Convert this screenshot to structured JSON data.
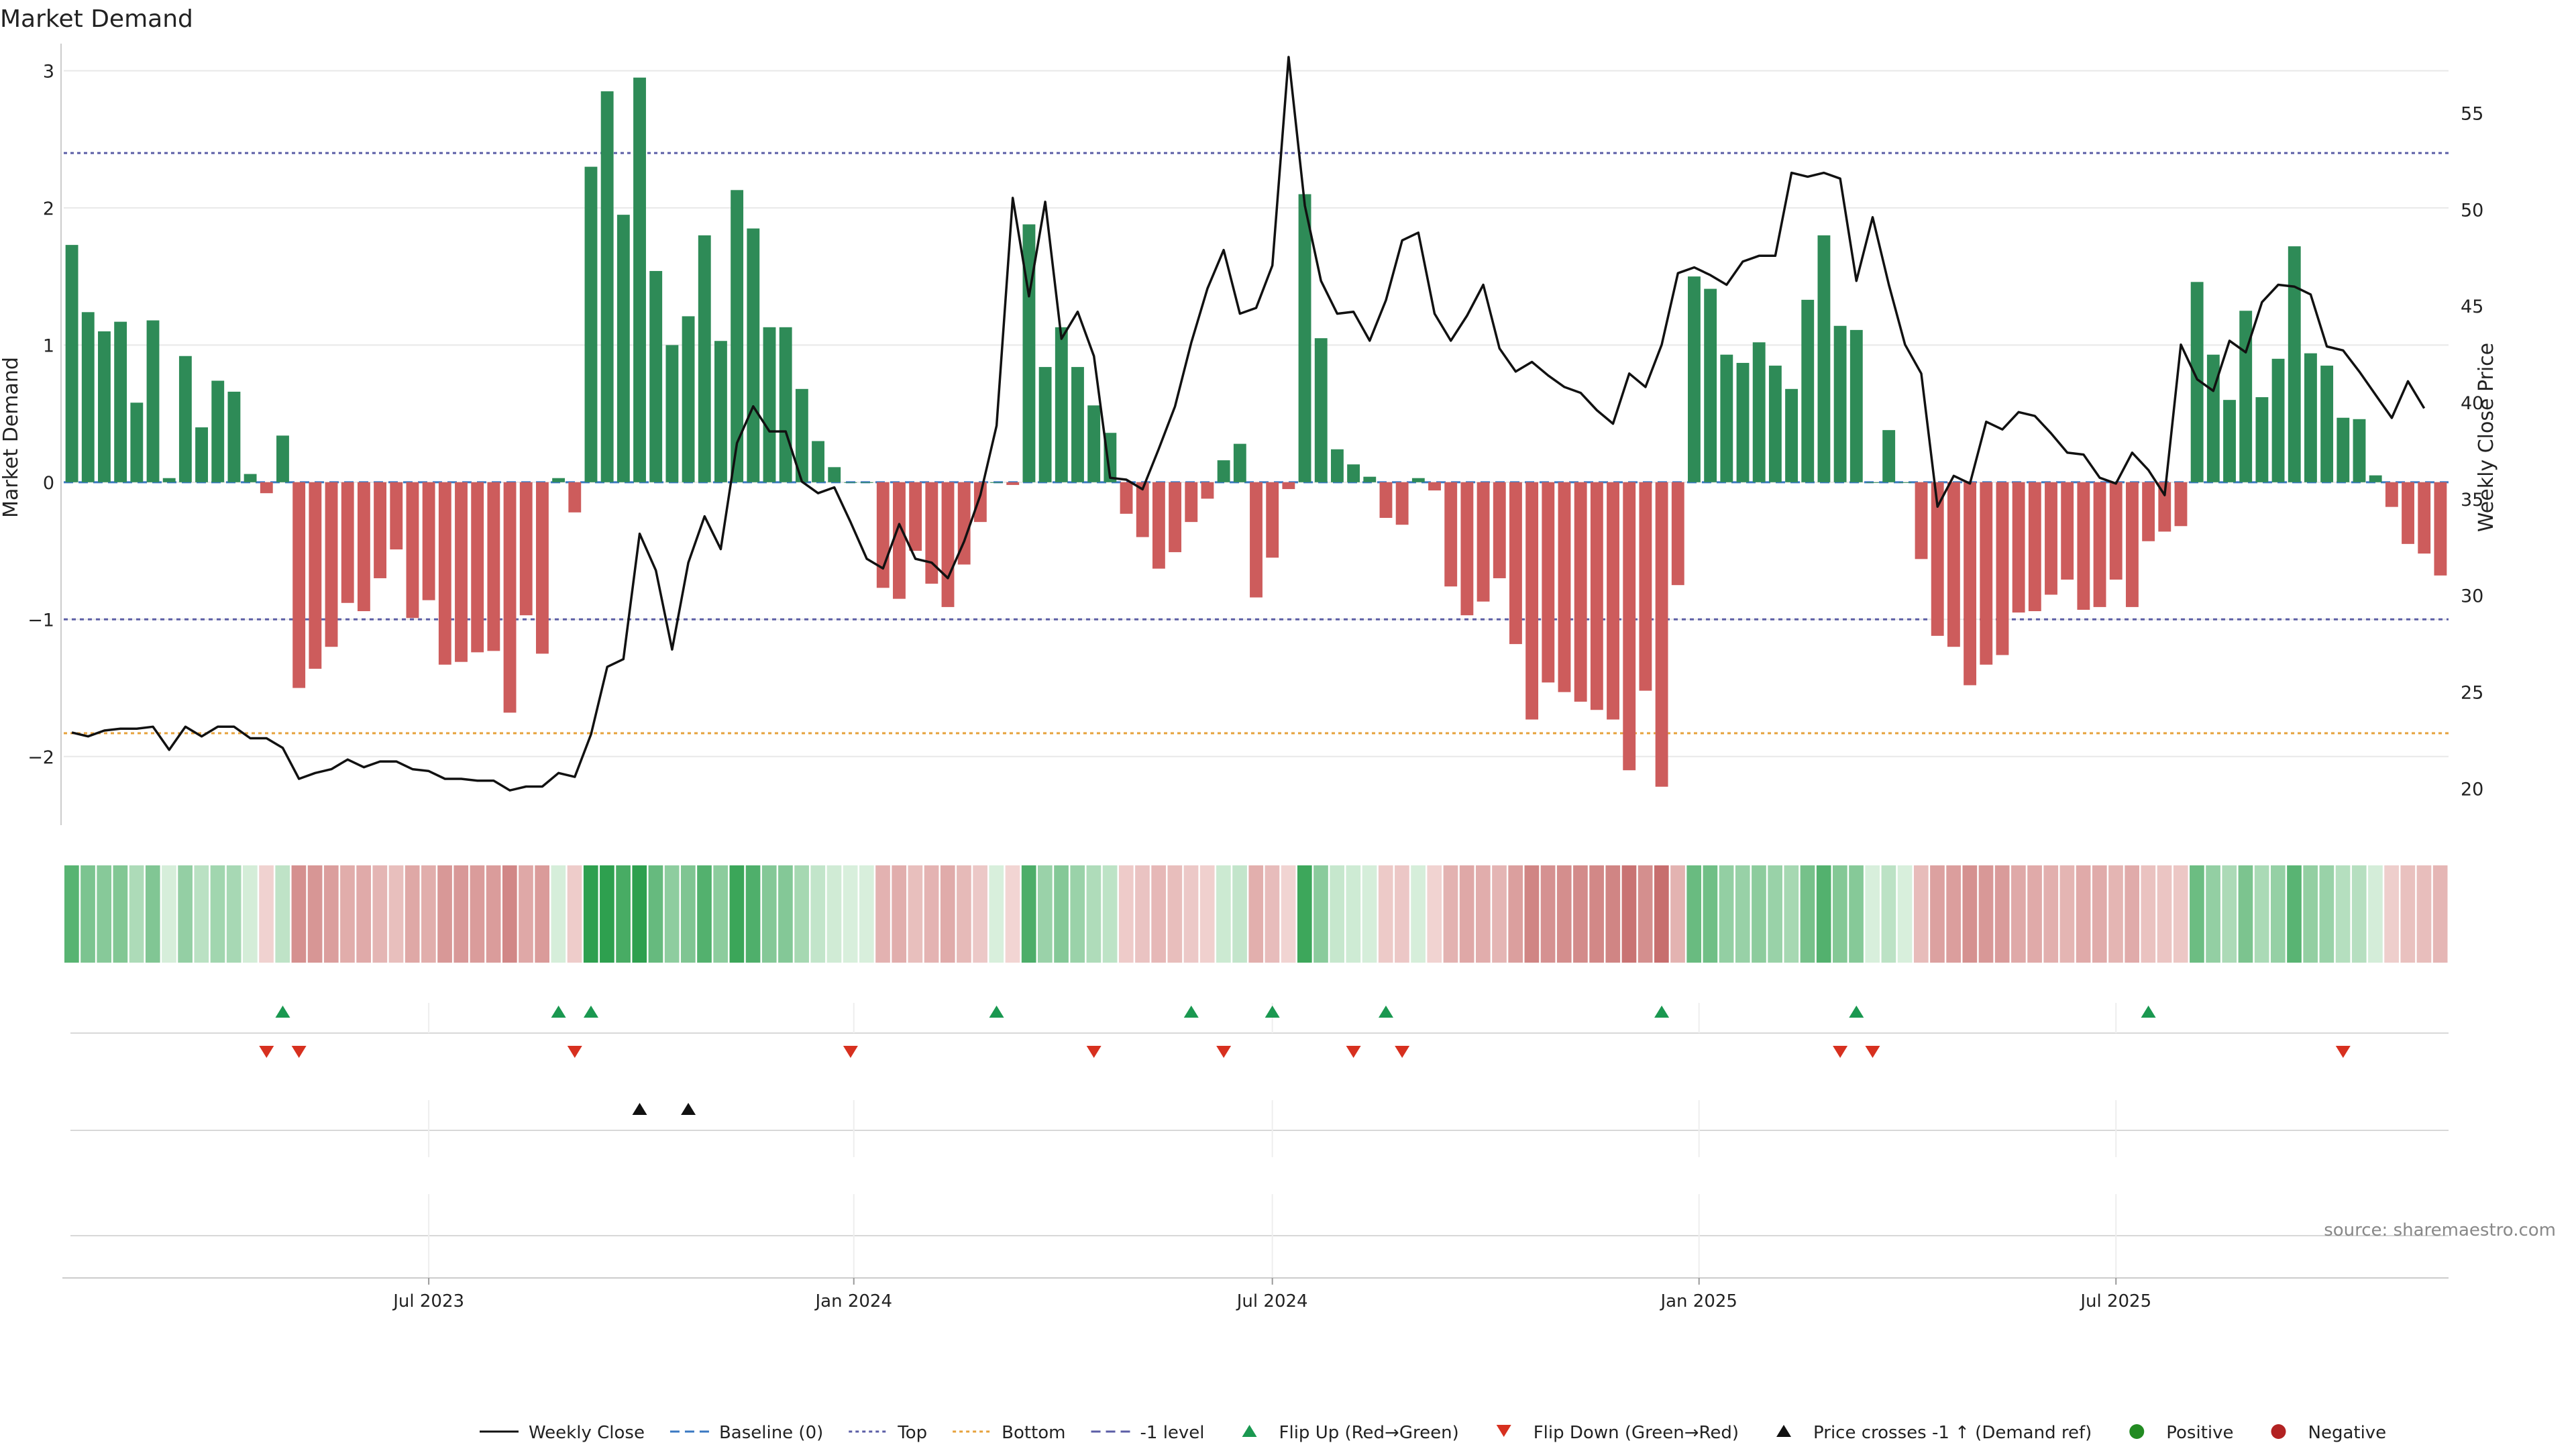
{
  "chart_data": {
    "type": "bar",
    "title": "Market Demand",
    "ylabel": "Market Demand",
    "y2label": "Weekly Close Price",
    "ylim": [
      -2.5,
      3.1
    ],
    "y2lim": [
      18.1,
      57.9
    ],
    "yticks": [
      3,
      2,
      1,
      0,
      -1,
      -2
    ],
    "ytick_labels": [
      "3",
      "2",
      "1",
      "0",
      "−1",
      "−2"
    ],
    "y2ticks": [
      55,
      50,
      45,
      40,
      35,
      30,
      25,
      20
    ],
    "y2tick_labels": [
      "55",
      "50",
      "45",
      "40",
      "35",
      "30",
      "25",
      "20"
    ],
    "reference_lines": {
      "top": 2.4,
      "bottom": -1.83,
      "minus_one": -1.0,
      "baseline": 0
    },
    "x_start_label": "2023-02-10",
    "xtick_labels": [
      "Jul 2023",
      "Jan 2024",
      "Jul 2024",
      "Jan 2025",
      "Jul 2025"
    ],
    "xtick_index": [
      22,
      48.2,
      74,
      100.3,
      126
    ],
    "demand": [
      1.73,
      1.24,
      1.1,
      1.17,
      0.58,
      1.18,
      0.03,
      0.92,
      0.4,
      0.74,
      0.66,
      0.06,
      -0.08,
      0.34,
      -1.5,
      -1.36,
      -1.2,
      -0.88,
      -0.94,
      -0.7,
      -0.49,
      -0.99,
      -0.86,
      -1.33,
      -1.31,
      -1.24,
      -1.23,
      -1.68,
      -0.97,
      -1.25,
      0.03,
      -0.22,
      2.3,
      2.85,
      1.95,
      2.95,
      1.54,
      1.0,
      1.21,
      1.8,
      1.03,
      2.13,
      1.85,
      1.13,
      1.13,
      0.68,
      0.3,
      0.11,
      0.0,
      0.0,
      -0.77,
      -0.85,
      -0.5,
      -0.74,
      -0.91,
      -0.6,
      -0.29,
      0.0,
      -0.02,
      1.88,
      0.84,
      1.13,
      0.84,
      0.56,
      0.36,
      -0.23,
      -0.4,
      -0.63,
      -0.51,
      -0.29,
      -0.12,
      0.16,
      0.28,
      -0.84,
      -0.55,
      -0.05,
      2.1,
      1.05,
      0.24,
      0.13,
      0.04,
      -0.26,
      -0.31,
      0.03,
      -0.06,
      -0.76,
      -0.97,
      -0.87,
      -0.7,
      -1.18,
      -1.73,
      -1.46,
      -1.53,
      -1.6,
      -1.66,
      -1.73,
      -2.1,
      -1.52,
      -2.22,
      -0.75,
      1.5,
      1.41,
      0.93,
      0.87,
      1.02,
      0.85,
      0.68,
      1.33,
      1.8,
      1.14,
      1.11,
      0.0,
      0.38,
      0.0,
      -0.56,
      -1.12,
      -1.2,
      -1.48,
      -1.33,
      -1.26,
      -0.95,
      -0.94,
      -0.82,
      -0.71,
      -0.93,
      -0.91,
      -0.71,
      -0.91,
      -0.43,
      -0.36,
      -0.32,
      1.46,
      0.93,
      0.6,
      1.25,
      0.62,
      0.9,
      1.72,
      0.94,
      0.85,
      0.47,
      0.46,
      0.05,
      -0.18,
      -0.45,
      -0.52,
      -0.68
    ],
    "series": [
      {
        "name": "Weekly Close",
        "values": [
          22.9,
          22.7,
          23.0,
          23.1,
          23.1,
          23.2,
          22.0,
          23.2,
          22.7,
          23.2,
          23.2,
          22.6,
          22.6,
          22.1,
          20.5,
          20.8,
          21.0,
          21.5,
          21.1,
          21.4,
          21.4,
          21.0,
          20.9,
          20.5,
          20.5,
          20.4,
          20.4,
          19.9,
          20.1,
          20.1,
          20.8,
          20.6,
          22.8,
          26.3,
          26.7,
          33.2,
          31.3,
          27.2,
          31.7,
          34.1,
          32.4,
          37.9,
          39.8,
          38.5,
          38.5,
          35.9,
          35.3,
          35.6,
          33.8,
          31.9,
          31.4,
          33.7,
          31.9,
          31.7,
          30.9,
          32.8,
          35.2,
          38.8,
          50.6,
          45.5,
          50.4,
          43.3,
          44.7,
          42.4,
          36.1,
          36.0,
          35.5,
          37.6,
          39.8,
          43.1,
          45.9,
          47.9,
          44.6,
          44.9,
          47.1,
          57.9,
          50.2,
          46.3,
          44.6,
          44.7,
          43.2,
          45.3,
          48.4,
          48.8,
          44.6,
          43.2,
          44.5,
          46.1,
          42.8,
          41.6,
          42.1,
          41.4,
          40.8,
          40.5,
          39.6,
          38.9,
          41.5,
          40.8,
          43.0,
          46.7,
          47.0,
          46.6,
          46.1,
          47.3,
          47.6,
          47.6,
          51.9,
          51.7,
          51.9,
          51.6,
          46.3,
          49.6,
          46.1,
          43.0,
          41.5,
          34.6,
          36.2,
          35.8,
          39.0,
          38.6,
          39.5,
          39.3,
          38.4,
          37.4,
          37.3,
          36.1,
          35.8,
          37.4,
          36.5,
          35.2,
          43.0,
          41.2,
          40.6,
          43.2,
          42.6,
          45.2,
          46.1,
          46.0,
          45.6,
          42.9,
          42.7,
          41.6,
          40.4,
          39.2,
          41.1,
          39.7
        ]
      }
    ],
    "flip_up_index": [
      13,
      30,
      32,
      57,
      69,
      74,
      81,
      98,
      110,
      128
    ],
    "flip_down_index": [
      12,
      14,
      31,
      48,
      63,
      71,
      79,
      82,
      109,
      111,
      140
    ],
    "price_cross_index": [
      35,
      38
    ],
    "colors": {
      "positive": "#2e8b57",
      "negative": "#cd5c5c",
      "price_line": "#111111",
      "top_line": "#5b5ea6",
      "bottom_line": "#e6a23c",
      "flip_up": "#1a9850",
      "flip_down": "#d7301f",
      "price_cross": "#111111",
      "positive_dot": "#228b22",
      "negative_dot": "#b22222",
      "grid": "#e8e8e8"
    },
    "legend_position": "bottom-center",
    "legend": [
      {
        "label": "Weekly Close",
        "icon": "solid-line"
      },
      {
        "label": "Baseline (0)",
        "icon": "dashed-line"
      },
      {
        "label": "Top",
        "icon": "dotted-line"
      },
      {
        "label": "Bottom",
        "icon": "dotted-line"
      },
      {
        "label": "-1 level",
        "icon": "dashed-line"
      },
      {
        "label": "Flip Up (Red→Green)",
        "icon": "triangle-up"
      },
      {
        "label": "Flip Down (Green→Red)",
        "icon": "triangle-down"
      },
      {
        "label": "Price crosses -1 ↑ (Demand ref)",
        "icon": "triangle-up"
      },
      {
        "label": "Positive",
        "icon": "dot"
      },
      {
        "label": "Negative",
        "icon": "dot"
      }
    ],
    "source": "source: sharemaestro.com"
  }
}
